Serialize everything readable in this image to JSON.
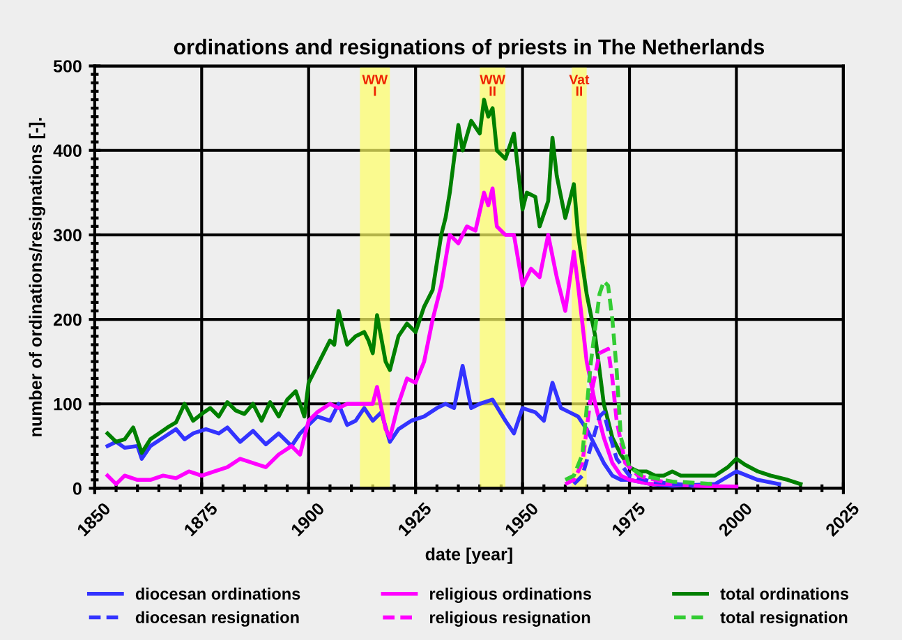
{
  "chart_data": {
    "type": "line",
    "title": "ordinations and resignations of priests in The Netherlands",
    "xlabel": "date [year]",
    "ylabel": "number of ordinations/resignations [-].",
    "xlim": [
      1850,
      2025
    ],
    "xticks": [
      1850,
      1875,
      1900,
      1925,
      1950,
      1975,
      2000,
      2025
    ],
    "ylim": [
      0,
      500
    ],
    "yticks": [
      0,
      100,
      200,
      300,
      400,
      500
    ],
    "grid": true,
    "legend": "bottom",
    "marker": "none",
    "bands": [
      {
        "axis": "x",
        "from": 1912,
        "to": 1919,
        "label": "WW\nI",
        "color": "#ffff66"
      },
      {
        "axis": "x",
        "from": 1940,
        "to": 1946,
        "label": "WW\nII",
        "color": "#ffff66"
      },
      {
        "axis": "x",
        "from": 1961.5,
        "to": 1965,
        "label": "Vat\nII",
        "color": "#ffff66"
      }
    ],
    "series": [
      {
        "name": "diocesan ordinations",
        "color": "#3333ff",
        "line_style": "solid",
        "x": [
          1853,
          1855,
          1857,
          1860,
          1861,
          1863,
          1866,
          1869,
          1871,
          1873,
          1876,
          1879,
          1881,
          1884,
          1887,
          1890,
          1893,
          1896,
          1898,
          1900,
          1902,
          1905,
          1907,
          1909,
          1911,
          1913,
          1915,
          1917,
          1919,
          1921,
          1924,
          1927,
          1930,
          1932,
          1934,
          1936,
          1938,
          1940,
          1943,
          1946,
          1948,
          1950,
          1953,
          1955,
          1957,
          1959,
          1961,
          1963,
          1965,
          1967,
          1969,
          1971,
          1973,
          1975,
          1980,
          1985,
          1995,
          2000,
          2005,
          2010
        ],
        "values": [
          50,
          55,
          48,
          50,
          35,
          50,
          60,
          70,
          58,
          65,
          70,
          65,
          72,
          55,
          68,
          52,
          65,
          50,
          65,
          75,
          85,
          80,
          100,
          75,
          80,
          95,
          80,
          90,
          55,
          70,
          80,
          85,
          95,
          100,
          95,
          145,
          95,
          100,
          105,
          80,
          65,
          95,
          90,
          80,
          125,
          95,
          90,
          85,
          70,
          50,
          30,
          15,
          10,
          10,
          5,
          3,
          5,
          20,
          10,
          5
        ]
      },
      {
        "name": "religious ordinations",
        "color": "#ff00ff",
        "line_style": "solid",
        "x": [
          1853,
          1855,
          1857,
          1860,
          1863,
          1866,
          1869,
          1872,
          1875,
          1878,
          1881,
          1884,
          1887,
          1890,
          1893,
          1896,
          1898,
          1899,
          1900,
          1902,
          1905,
          1907,
          1909,
          1911,
          1913,
          1915,
          1916,
          1918,
          1919,
          1921,
          1923,
          1925,
          1927,
          1929,
          1931,
          1933,
          1935,
          1937,
          1939,
          1941,
          1942,
          1943,
          1944,
          1946,
          1948,
          1950,
          1952,
          1954,
          1956,
          1958,
          1960,
          1962,
          1963,
          1965,
          1967,
          1969,
          1971,
          1973,
          1975,
          1980,
          1985,
          1990,
          2000
        ],
        "values": [
          15,
          5,
          15,
          10,
          10,
          15,
          12,
          20,
          15,
          20,
          25,
          35,
          30,
          25,
          40,
          50,
          40,
          60,
          80,
          90,
          100,
          95,
          100,
          100,
          100,
          100,
          120,
          70,
          60,
          100,
          130,
          125,
          150,
          200,
          240,
          300,
          290,
          310,
          305,
          350,
          335,
          355,
          310,
          300,
          300,
          240,
          260,
          250,
          300,
          250,
          210,
          280,
          240,
          150,
          100,
          60,
          30,
          15,
          10,
          5,
          5,
          3,
          2
        ]
      },
      {
        "name": "total ordinations",
        "color": "#008000",
        "line_style": "solid",
        "x": [
          1853,
          1855,
          1857,
          1859,
          1861,
          1863,
          1865,
          1867,
          1869,
          1871,
          1873,
          1875,
          1877,
          1879,
          1881,
          1883,
          1885,
          1887,
          1889,
          1891,
          1893,
          1895,
          1897,
          1899,
          1900,
          1902,
          1904,
          1905,
          1906,
          1907,
          1909,
          1911,
          1913,
          1914,
          1915,
          1916,
          1918,
          1919,
          1921,
          1923,
          1925,
          1927,
          1929,
          1931,
          1932,
          1933,
          1935,
          1936,
          1938,
          1940,
          1941,
          1942,
          1943,
          1944,
          1946,
          1948,
          1950,
          1951,
          1953,
          1954,
          1956,
          1957,
          1958,
          1960,
          1962,
          1963,
          1965,
          1967,
          1969,
          1971,
          1973,
          1975,
          1977,
          1979,
          1981,
          1983,
          1985,
          1987,
          1990,
          1995,
          1998,
          2000,
          2002,
          2005,
          2008,
          2012,
          2015
        ],
        "values": [
          65,
          55,
          58,
          72,
          42,
          58,
          65,
          72,
          78,
          100,
          80,
          88,
          95,
          85,
          102,
          92,
          88,
          100,
          80,
          102,
          85,
          105,
          115,
          85,
          125,
          145,
          165,
          175,
          170,
          210,
          170,
          180,
          185,
          175,
          160,
          205,
          150,
          140,
          180,
          195,
          185,
          215,
          235,
          300,
          320,
          350,
          430,
          400,
          435,
          420,
          460,
          440,
          450,
          400,
          390,
          420,
          330,
          350,
          345,
          310,
          340,
          415,
          370,
          320,
          360,
          300,
          230,
          180,
          100,
          60,
          40,
          25,
          20,
          20,
          15,
          15,
          20,
          15,
          15,
          15,
          25,
          35,
          28,
          20,
          15,
          10,
          5
        ]
      },
      {
        "name": "diocesan resignation",
        "color": "#3333ff",
        "line_style": "dashed",
        "x": [
          1962,
          1964,
          1966,
          1968,
          1969,
          1970,
          1972,
          1975,
          1980,
          1990
        ],
        "values": [
          5,
          15,
          50,
          85,
          90,
          70,
          35,
          15,
          8,
          3
        ]
      },
      {
        "name": "religious resignation",
        "color": "#ff00ff",
        "line_style": "dashed",
        "x": [
          1960,
          1962,
          1964,
          1966,
          1968,
          1970,
          1971,
          1972,
          1974,
          1977,
          1985
        ],
        "values": [
          5,
          10,
          30,
          110,
          160,
          165,
          130,
          80,
          30,
          15,
          5
        ]
      },
      {
        "name": "total resignation",
        "color": "#33cc33",
        "line_style": "dashed",
        "x": [
          1960,
          1962,
          1964,
          1966,
          1968,
          1969,
          1970,
          1971,
          1972,
          1973,
          1975,
          1978,
          1985,
          1995
        ],
        "values": [
          10,
          15,
          40,
          150,
          230,
          245,
          240,
          200,
          140,
          60,
          25,
          15,
          8,
          5
        ]
      }
    ]
  }
}
